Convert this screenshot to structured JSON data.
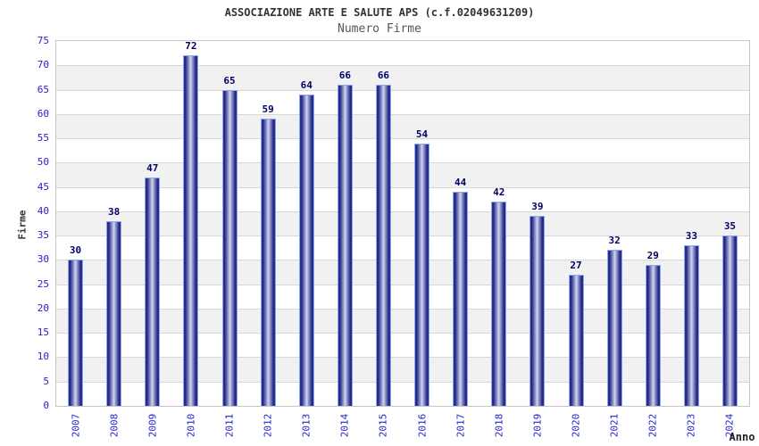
{
  "chart_data": {
    "type": "bar",
    "title": "ASSOCIAZIONE ARTE E SALUTE APS (c.f.02049631209)",
    "subtitle": "Numero Firme",
    "xlabel": "Anno",
    "ylabel": "Firme",
    "categories": [
      "2007",
      "2008",
      "2009",
      "2010",
      "2011",
      "2012",
      "2013",
      "2014",
      "2015",
      "2016",
      "2017",
      "2018",
      "2019",
      "2020",
      "2021",
      "2022",
      "2023",
      "2024"
    ],
    "values": [
      30,
      38,
      47,
      72,
      65,
      59,
      64,
      66,
      66,
      54,
      44,
      42,
      39,
      27,
      32,
      29,
      33,
      35
    ],
    "yticks": [
      0,
      5,
      10,
      15,
      20,
      25,
      30,
      35,
      40,
      45,
      50,
      55,
      60,
      65,
      70,
      75
    ],
    "ylim": [
      0,
      75
    ],
    "ytick_step": 5,
    "grid": "horizontal",
    "legend": "none",
    "colors": {
      "tick_label": "#2323cc",
      "value_label": "#000066",
      "title": "#333333",
      "subtitle": "#555555",
      "band_light": "#ffffff",
      "band_dark": "#f1f1f1",
      "gridline": "#d7d7d7",
      "plot_border": "#c6c6c6",
      "bar_edge": "#30309a",
      "bar_dark": "#222280",
      "bar_mid": "#8a90c8",
      "bar_center": "#d2d6ee",
      "bar_outline": "#85abec"
    }
  }
}
